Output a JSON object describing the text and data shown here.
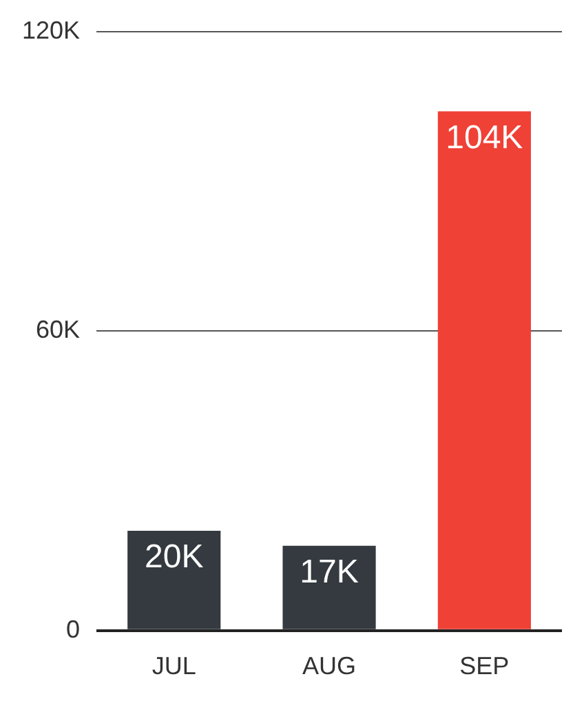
{
  "chart_data": {
    "type": "bar",
    "categories": [
      "JUL",
      "AUG",
      "SEP"
    ],
    "values": [
      20000,
      17000,
      104000
    ],
    "colors": [
      "#343a40",
      "#343a40",
      "#ef4136"
    ],
    "value_labels": [
      "20K",
      "17K",
      "104K"
    ],
    "ylim": [
      0,
      120000
    ],
    "yticks": [
      {
        "value": 0,
        "label": "0"
      },
      {
        "value": 60000,
        "label": "60K"
      },
      {
        "value": 120000,
        "label": "120K"
      }
    ],
    "grid": "y"
  }
}
